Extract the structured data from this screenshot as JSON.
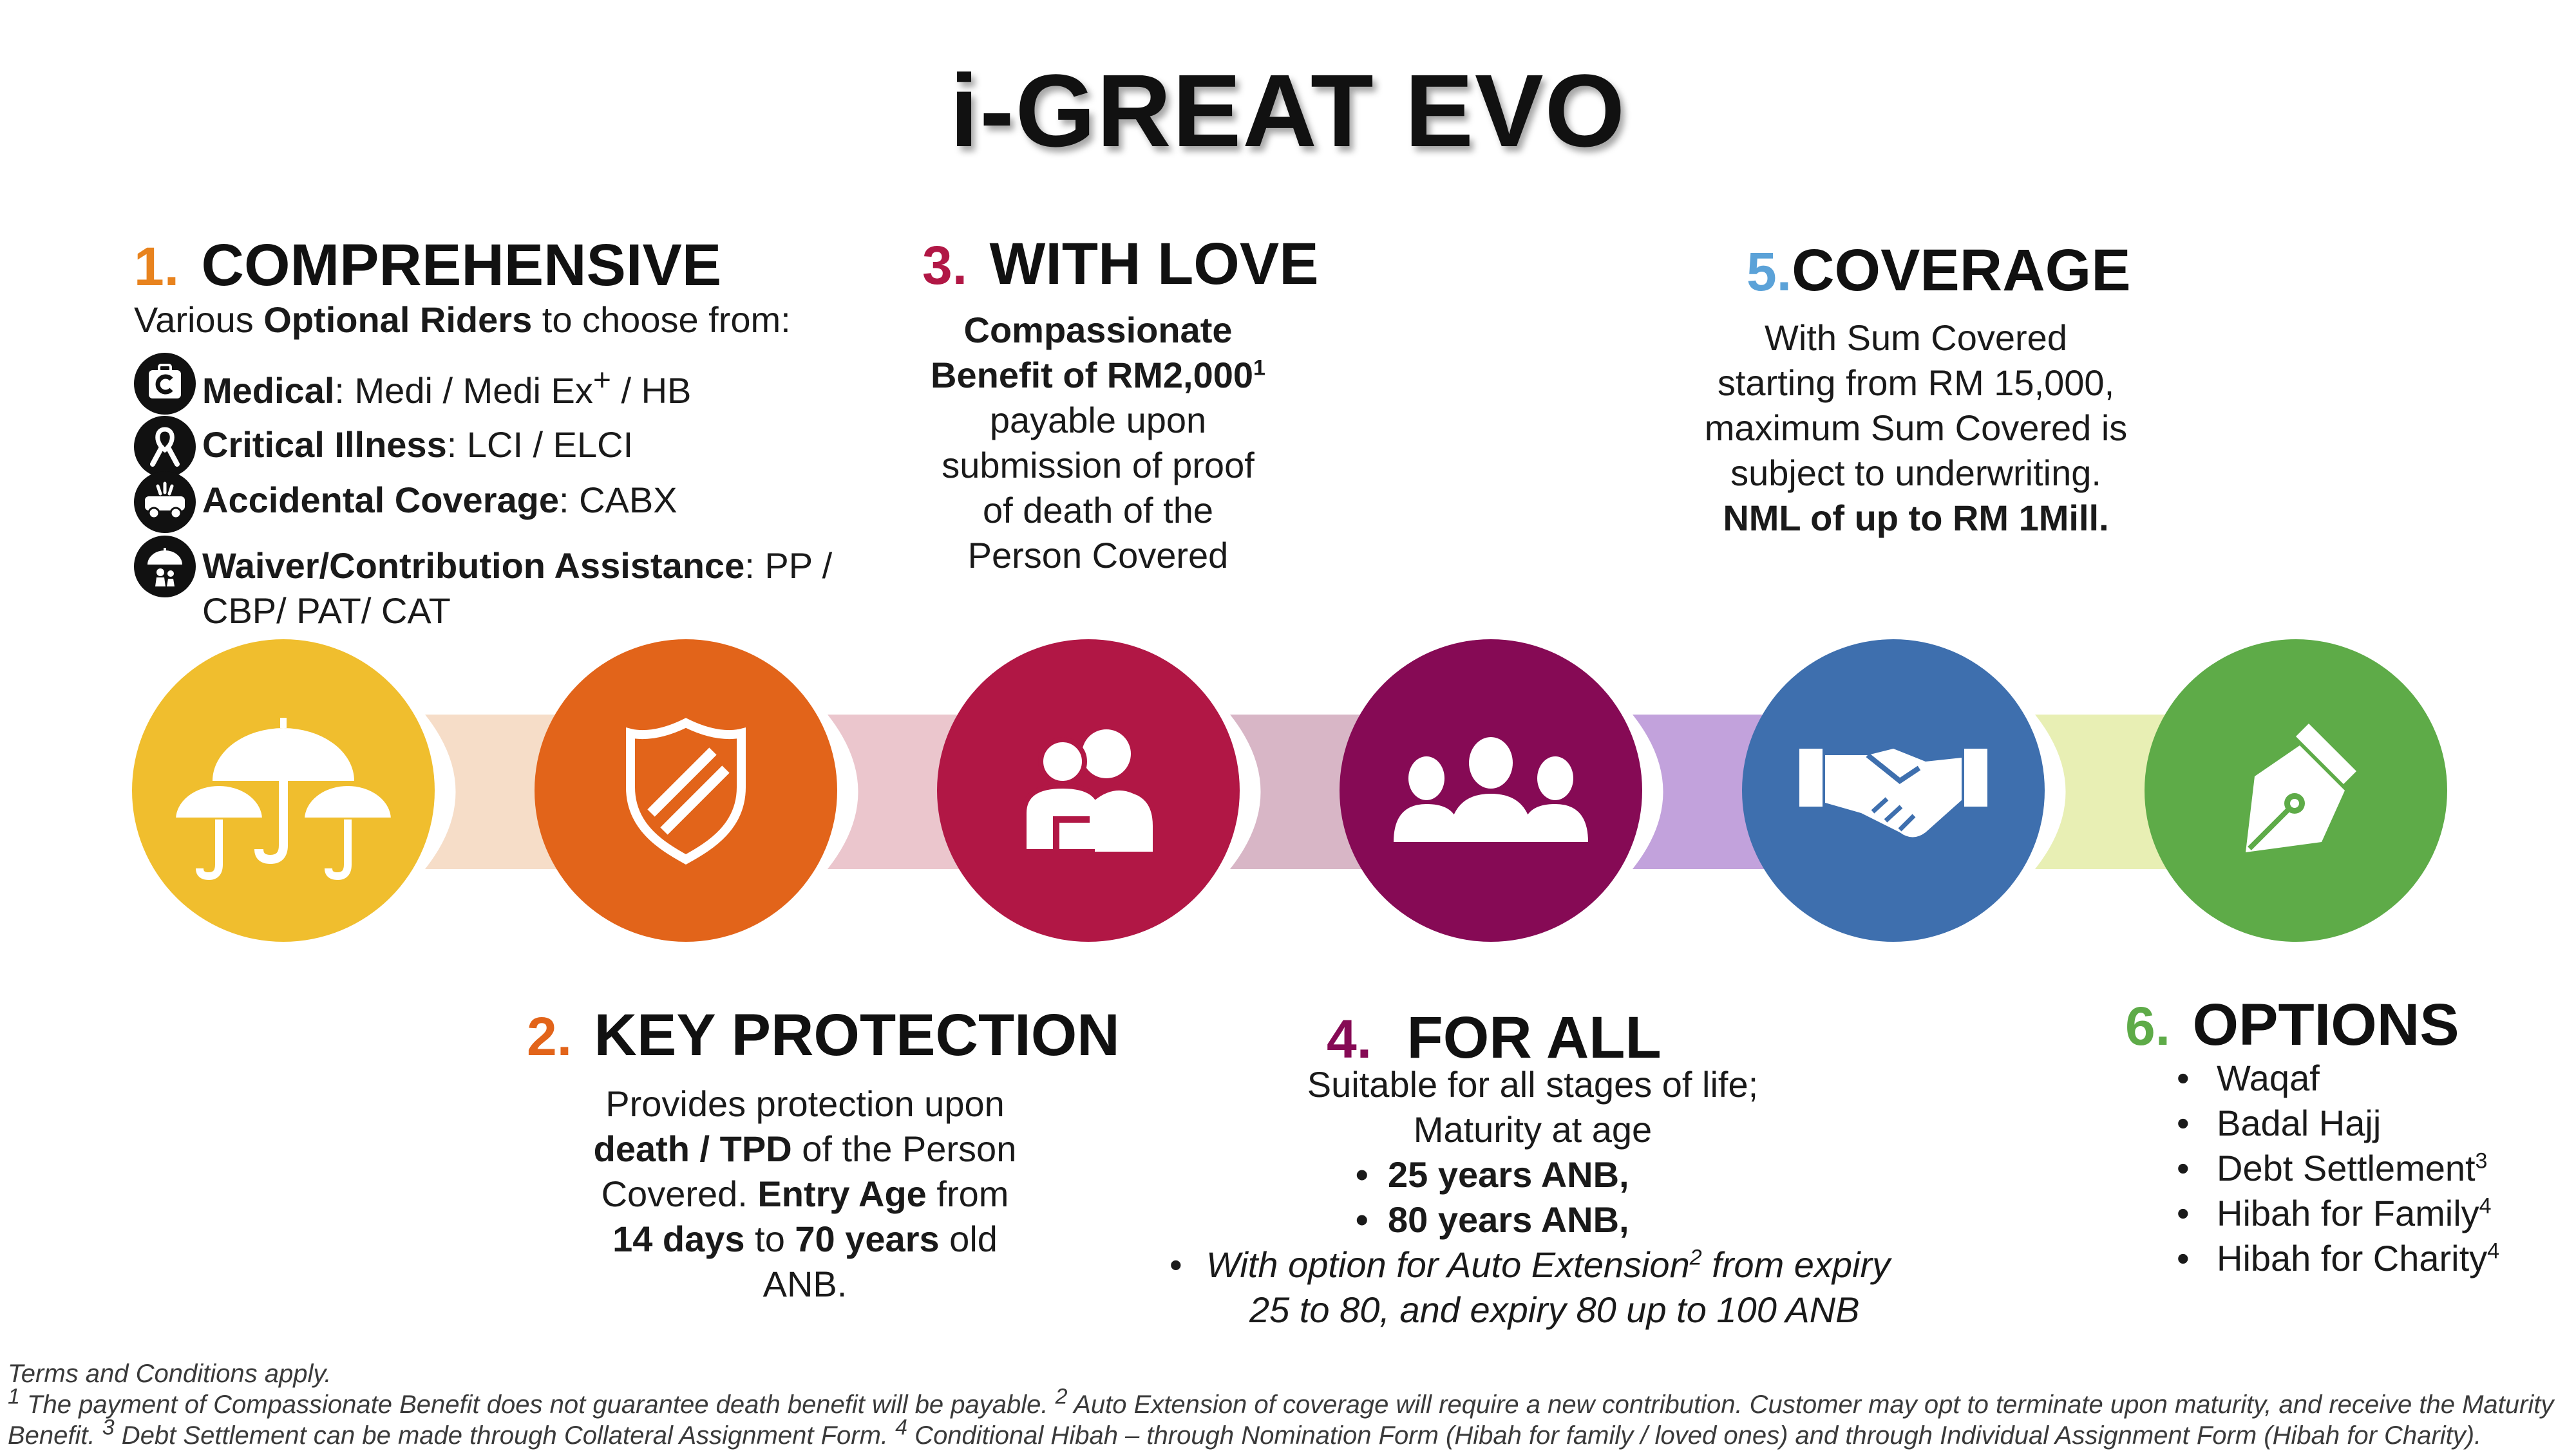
{
  "title": "i-GREAT EVO",
  "colors": {
    "yellow": "#F0BE2E",
    "orange": "#E2641A",
    "crimson": "#B11745",
    "purple": "#860A55",
    "blue": "#3E6FAE",
    "green": "#5EAB48",
    "num1": "#E8831E",
    "num2": "#E2641A",
    "num3": "#B11745",
    "num4": "#860A55",
    "num5": "#5BA2D8",
    "num6": "#5EAB48"
  },
  "sections": {
    "s1": {
      "num": "1.",
      "heading": "COMPREHENSIVE",
      "intro_a": "Various ",
      "intro_b": "Optional Riders",
      "intro_c": " to choose from:",
      "riders": [
        {
          "icon": "medical-icon",
          "name": "Medical",
          "detail": ": Medi / Medi Ex",
          "sup": "+",
          "detail2": " / HB"
        },
        {
          "icon": "ribbon-icon",
          "name": "Critical Illness",
          "detail": ": LCI / ELCI"
        },
        {
          "icon": "accident-icon",
          "name": "Accidental Coverage",
          "detail": ": CABX"
        },
        {
          "icon": "umbrella-family-icon",
          "name": "Waiver/Contribution Assistance",
          "detail": ": PP /",
          "detail_line2": "CBP/ PAT/ CAT"
        }
      ]
    },
    "s2": {
      "num": "2.",
      "heading": "KEY PROTECTION",
      "l1": "Provides protection upon",
      "l2_b": "death / TPD",
      "l2": " of the Person",
      "l3": "Covered. ",
      "l3_b": "Entry Age",
      "l3_c": " from",
      "l4_b1": "14 days",
      "l4": " to ",
      "l4_b2": "70 years",
      "l4_c": " old",
      "l5": "ANB."
    },
    "s3": {
      "num": "3.",
      "heading": "WITH LOVE",
      "l1": "Compassionate",
      "l2": "Benefit of RM2,000",
      "l2_sup": "1",
      "l3": "payable upon",
      "l4": "submission of proof",
      "l5": "of death of the",
      "l6": "Person Covered"
    },
    "s4": {
      "num": "4.",
      "heading": "FOR ALL",
      "l1": "Suitable for all stages of life;",
      "l2": "Maturity at age",
      "b1": "25 years ANB,",
      "b2": "80 years ANB,",
      "b3_a": "With option for Auto Extension",
      "b3_sup": "2",
      "b3_b": " from expiry",
      "b3_line2": "25 to 80, and expiry 80 up to 100 ANB"
    },
    "s5": {
      "num": "5.",
      "heading": "COVERAGE",
      "l1": "With Sum Covered",
      "l2": "starting from RM 15,000,",
      "l3": "maximum Sum Covered is",
      "l4": "subject to underwriting.",
      "l5": "NML of up to RM 1Mill."
    },
    "s6": {
      "num": "6.",
      "heading": "OPTIONS",
      "items": [
        {
          "text": "Waqaf",
          "sup": ""
        },
        {
          "text": "Badal Hajj",
          "sup": ""
        },
        {
          "text": "Debt Settlement",
          "sup": "3"
        },
        {
          "text": "Hibah for Family",
          "sup": "4"
        },
        {
          "text": "Hibah for Charity",
          "sup": "4"
        }
      ]
    }
  },
  "icons": [
    "umbrellas-icon",
    "shield-icon",
    "caring-people-icon",
    "group-icon",
    "handshake-icon",
    "fountain-pen-icon"
  ],
  "footnotes": {
    "terms": "Terms and Conditions apply.",
    "sup1": "1",
    "f1": " The payment of Compassionate Benefit does not guarantee death benefit will be payable. ",
    "sup2": "2",
    "f2": " Auto Extension of coverage will require a new contribution. Customer may opt to terminate upon maturity, and receive the Maturity",
    "f3": "Benefit. ",
    "sup3": "3",
    "f4": " Debt Settlement can be made through Collateral Assignment Form. ",
    "sup4": "4",
    "f5": " Conditional Hibah – through Nomination Form (Hibah for family / loved ones) and through Individual Assignment Form (Hibah for Charity)."
  }
}
